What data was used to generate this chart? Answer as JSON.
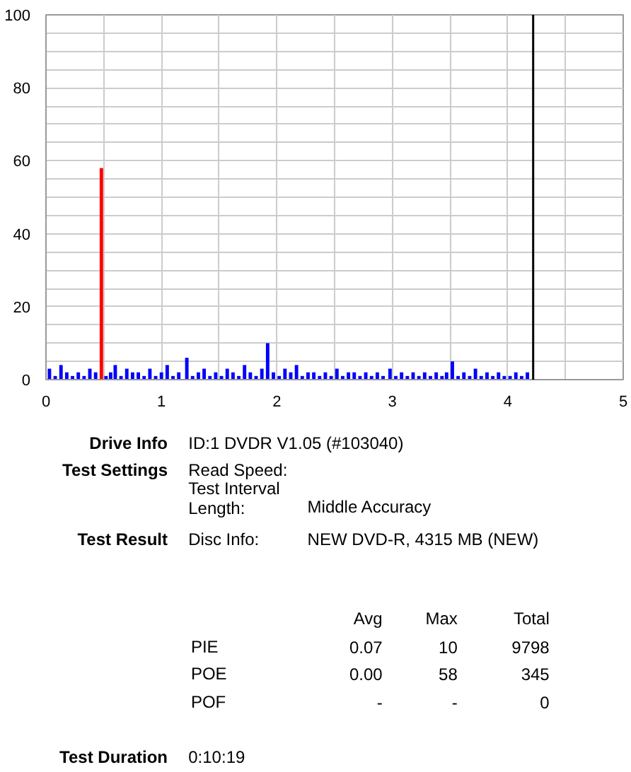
{
  "chart_data": {
    "type": "bar",
    "xlim": [
      0,
      5
    ],
    "ylim": [
      0,
      100
    ],
    "xticks": [
      0,
      {
        "value": 0.5,
        "label": null
      },
      1,
      {
        "value": 1.5,
        "label": null
      },
      2,
      {
        "value": 2.5,
        "label": null
      },
      3,
      {
        "value": 3.5,
        "label": null
      },
      4,
      {
        "value": 4.5,
        "label": null
      },
      5
    ],
    "yticks": [
      0,
      {
        "value": 5,
        "label": null
      },
      {
        "value": 10,
        "label": null
      },
      {
        "value": 15,
        "label": null
      },
      20,
      {
        "value": 25,
        "label": null
      },
      {
        "value": 30,
        "label": null
      },
      {
        "value": 35,
        "label": null
      },
      40,
      {
        "value": 45,
        "label": null
      },
      {
        "value": 50,
        "label": null
      },
      {
        "value": 55,
        "label": null
      },
      60,
      {
        "value": 65,
        "label": null
      },
      {
        "value": 70,
        "label": null
      },
      {
        "value": 75,
        "label": null
      },
      80,
      {
        "value": 85,
        "label": null
      },
      {
        "value": 90,
        "label": null
      },
      {
        "value": 95,
        "label": null
      },
      100
    ],
    "grid": true,
    "series": [
      {
        "color": "#0000ff",
        "x": [
          0.03,
          0.08,
          0.13,
          0.18,
          0.23,
          0.28,
          0.33,
          0.38,
          0.43,
          0.52,
          0.56,
          0.6,
          0.65,
          0.7,
          0.75,
          0.8,
          0.85,
          0.9,
          0.95,
          1.0,
          1.05,
          1.1,
          1.15,
          1.22,
          1.27,
          1.32,
          1.37,
          1.42,
          1.47,
          1.52,
          1.57,
          1.62,
          1.67,
          1.72,
          1.77,
          1.82,
          1.87,
          1.92,
          1.97,
          2.02,
          2.07,
          2.12,
          2.17,
          2.22,
          2.27,
          2.32,
          2.37,
          2.42,
          2.47,
          2.52,
          2.57,
          2.62,
          2.67,
          2.72,
          2.77,
          2.82,
          2.87,
          2.92,
          2.98,
          3.03,
          3.08,
          3.13,
          3.18,
          3.23,
          3.28,
          3.33,
          3.38,
          3.43,
          3.47,
          3.52,
          3.57,
          3.62,
          3.67,
          3.72,
          3.77,
          3.82,
          3.87,
          3.92,
          3.97,
          4.02,
          4.07,
          4.12,
          4.17
        ],
        "values": [
          3,
          1,
          4,
          2,
          1,
          2,
          1,
          3,
          2,
          1,
          2,
          4,
          1,
          3,
          2,
          2,
          1,
          3,
          1,
          2,
          4,
          1,
          2,
          6,
          1,
          2,
          3,
          1,
          2,
          1,
          3,
          2,
          1,
          4,
          2,
          1,
          3,
          10,
          2,
          1,
          3,
          2,
          4,
          1,
          2,
          2,
          1,
          2,
          1,
          3,
          1,
          2,
          2,
          1,
          2,
          1,
          2,
          1,
          3,
          1,
          2,
          1,
          2,
          1,
          2,
          1,
          2,
          1,
          2,
          5,
          1,
          2,
          1,
          3,
          1,
          2,
          1,
          2,
          1,
          1,
          2,
          1,
          2
        ]
      },
      {
        "color": "#ff0000",
        "x": [
          0.48
        ],
        "values": [
          58
        ]
      }
    ],
    "ref_lines": [
      {
        "axis": "x",
        "value": 4.22,
        "color": "#000000"
      }
    ],
    "annotations": [
      "Drive Info",
      "ID:1 DVDR V1.05 (#103040)",
      "Test Settings",
      "Read Speed:",
      "Test Interval Length:",
      "Middle Accuracy",
      "Test Result",
      "Disc Info:",
      "NEW DVD-R, 4315 MB (NEW)",
      "Avg",
      "Max",
      "Total",
      "PIE",
      "0.07",
      "10",
      "9798",
      "POE",
      "0.00",
      "58",
      "345",
      "POF",
      "-",
      "-",
      "0",
      "Test Duration",
      "0:10:19"
    ]
  }
}
